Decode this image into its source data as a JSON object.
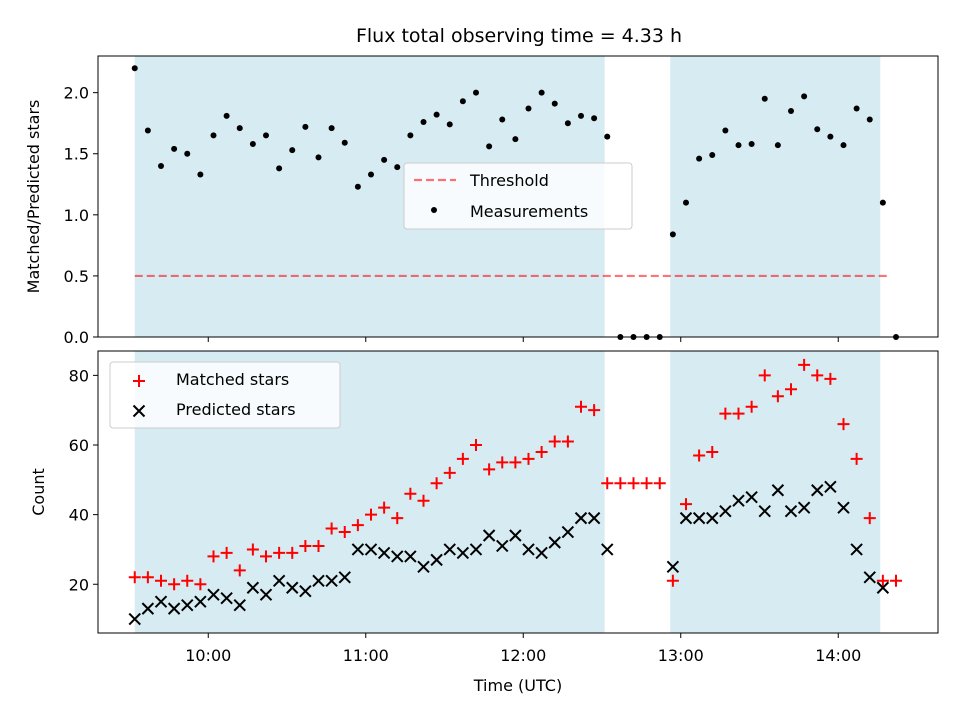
{
  "title": "Flux total observing time = 4.33 h",
  "colors": {
    "span": "#add8e6",
    "threshold": "#ff0000",
    "measurement": "#000000",
    "matched": "#ff0000",
    "predicted": "#000000"
  },
  "chart_data": [
    {
      "type": "scatter",
      "ylabel": "Matched/Predicted stars",
      "xlim": [
        "09:18",
        "14:38"
      ],
      "ylim": [
        0,
        2.3
      ],
      "yticks": [
        0.0,
        0.5,
        1.0,
        1.5,
        2.0
      ],
      "ytick_labels": [
        "0.0",
        "0.5",
        "1.0",
        "1.5",
        "2.0"
      ],
      "observing_spans": [
        [
          "09:32",
          "12:31"
        ],
        [
          "12:56",
          "14:16"
        ]
      ],
      "legend": {
        "position": "center",
        "entries": [
          {
            "label": "Threshold",
            "kind": "dashed-line"
          },
          {
            "label": "Measurements",
            "kind": "dot"
          }
        ]
      },
      "series": [
        {
          "name": "Threshold",
          "kind": "hline",
          "y": 0.5,
          "x_range": [
            "09:32",
            "14:20"
          ]
        },
        {
          "name": "Measurements",
          "kind": "dots",
          "points": [
            [
              "09:32",
              2.2
            ],
            [
              "09:37",
              1.69
            ],
            [
              "09:42",
              1.4
            ],
            [
              "09:47",
              1.54
            ],
            [
              "09:52",
              1.5
            ],
            [
              "09:57",
              1.33
            ],
            [
              "10:02",
              1.65
            ],
            [
              "10:07",
              1.81
            ],
            [
              "10:12",
              1.71
            ],
            [
              "10:17",
              1.58
            ],
            [
              "10:22",
              1.65
            ],
            [
              "10:27",
              1.38
            ],
            [
              "10:32",
              1.53
            ],
            [
              "10:37",
              1.72
            ],
            [
              "10:42",
              1.47
            ],
            [
              "10:47",
              1.71
            ],
            [
              "10:52",
              1.59
            ],
            [
              "10:57",
              1.23
            ],
            [
              "11:02",
              1.33
            ],
            [
              "11:07",
              1.45
            ],
            [
              "11:12",
              1.39
            ],
            [
              "11:17",
              1.65
            ],
            [
              "11:22",
              1.76
            ],
            [
              "11:27",
              1.82
            ],
            [
              "11:32",
              1.74
            ],
            [
              "11:37",
              1.93
            ],
            [
              "11:42",
              2.0
            ],
            [
              "11:47",
              1.56
            ],
            [
              "11:52",
              1.78
            ],
            [
              "11:57",
              1.62
            ],
            [
              "12:02",
              1.87
            ],
            [
              "12:07",
              2.0
            ],
            [
              "12:12",
              1.91
            ],
            [
              "12:17",
              1.75
            ],
            [
              "12:22",
              1.81
            ],
            [
              "12:27",
              1.79
            ],
            [
              "12:32",
              1.64
            ],
            [
              "12:37",
              0.0
            ],
            [
              "12:42",
              0.0
            ],
            [
              "12:47",
              0.0
            ],
            [
              "12:52",
              0.0
            ],
            [
              "12:57",
              0.84
            ],
            [
              "13:02",
              1.1
            ],
            [
              "13:07",
              1.46
            ],
            [
              "13:12",
              1.49
            ],
            [
              "13:17",
              1.69
            ],
            [
              "13:22",
              1.57
            ],
            [
              "13:27",
              1.58
            ],
            [
              "13:32",
              1.95
            ],
            [
              "13:37",
              1.57
            ],
            [
              "13:42",
              1.85
            ],
            [
              "13:47",
              1.97
            ],
            [
              "13:52",
              1.7
            ],
            [
              "13:57",
              1.64
            ],
            [
              "14:02",
              1.57
            ],
            [
              "14:07",
              1.87
            ],
            [
              "14:12",
              1.78
            ],
            [
              "14:17",
              1.1
            ],
            [
              "14:22",
              0.0
            ]
          ]
        }
      ]
    },
    {
      "type": "scatter",
      "xlabel": "Time (UTC)",
      "ylabel": "Count",
      "xlim": [
        "09:18",
        "14:38"
      ],
      "ylim": [
        6,
        87
      ],
      "xticks": [
        "10:00",
        "11:00",
        "12:00",
        "13:00",
        "14:00"
      ],
      "yticks": [
        20,
        40,
        60,
        80
      ],
      "ytick_labels": [
        "20",
        "40",
        "60",
        "80"
      ],
      "observing_spans": [
        [
          "09:32",
          "12:31"
        ],
        [
          "12:56",
          "14:16"
        ]
      ],
      "legend": {
        "position": "upper left",
        "entries": [
          {
            "label": "Matched stars",
            "kind": "plus"
          },
          {
            "label": "Predicted stars",
            "kind": "cross"
          }
        ]
      },
      "series": [
        {
          "name": "Matched stars",
          "kind": "plus",
          "points": [
            [
              "09:32",
              22
            ],
            [
              "09:37",
              22
            ],
            [
              "09:42",
              21
            ],
            [
              "09:47",
              20
            ],
            [
              "09:52",
              21
            ],
            [
              "09:57",
              20
            ],
            [
              "10:02",
              28
            ],
            [
              "10:07",
              29
            ],
            [
              "10:12",
              24
            ],
            [
              "10:17",
              30
            ],
            [
              "10:22",
              28
            ],
            [
              "10:27",
              29
            ],
            [
              "10:32",
              29
            ],
            [
              "10:37",
              31
            ],
            [
              "10:42",
              31
            ],
            [
              "10:47",
              36
            ],
            [
              "10:52",
              35
            ],
            [
              "10:57",
              37
            ],
            [
              "11:02",
              40
            ],
            [
              "11:07",
              42
            ],
            [
              "11:12",
              39
            ],
            [
              "11:17",
              46
            ],
            [
              "11:22",
              44
            ],
            [
              "11:27",
              49
            ],
            [
              "11:32",
              52
            ],
            [
              "11:37",
              56
            ],
            [
              "11:42",
              60
            ],
            [
              "11:47",
              53
            ],
            [
              "11:52",
              55
            ],
            [
              "11:57",
              55
            ],
            [
              "12:02",
              56
            ],
            [
              "12:07",
              58
            ],
            [
              "12:12",
              61
            ],
            [
              "12:17",
              61
            ],
            [
              "12:22",
              71
            ],
            [
              "12:27",
              70
            ],
            [
              "12:32",
              49
            ],
            [
              "12:37",
              49
            ],
            [
              "12:42",
              49
            ],
            [
              "12:47",
              49
            ],
            [
              "12:52",
              49
            ],
            [
              "12:57",
              21
            ],
            [
              "13:02",
              43
            ],
            [
              "13:07",
              57
            ],
            [
              "13:12",
              58
            ],
            [
              "13:17",
              69
            ],
            [
              "13:22",
              69
            ],
            [
              "13:27",
              71
            ],
            [
              "13:32",
              80
            ],
            [
              "13:37",
              74
            ],
            [
              "13:42",
              76
            ],
            [
              "13:47",
              83
            ],
            [
              "13:52",
              80
            ],
            [
              "13:57",
              79
            ],
            [
              "14:02",
              66
            ],
            [
              "14:07",
              56
            ],
            [
              "14:12",
              39
            ],
            [
              "14:17",
              21
            ],
            [
              "14:22",
              21
            ]
          ]
        },
        {
          "name": "Predicted stars",
          "kind": "cross",
          "points": [
            [
              "09:32",
              10
            ],
            [
              "09:37",
              13
            ],
            [
              "09:42",
              15
            ],
            [
              "09:47",
              13
            ],
            [
              "09:52",
              14
            ],
            [
              "09:57",
              15
            ],
            [
              "10:02",
              17
            ],
            [
              "10:07",
              16
            ],
            [
              "10:12",
              14
            ],
            [
              "10:17",
              19
            ],
            [
              "10:22",
              17
            ],
            [
              "10:27",
              21
            ],
            [
              "10:32",
              19
            ],
            [
              "10:37",
              18
            ],
            [
              "10:42",
              21
            ],
            [
              "10:47",
              21
            ],
            [
              "10:52",
              22
            ],
            [
              "10:57",
              30
            ],
            [
              "11:02",
              30
            ],
            [
              "11:07",
              29
            ],
            [
              "11:12",
              28
            ],
            [
              "11:17",
              28
            ],
            [
              "11:22",
              25
            ],
            [
              "11:27",
              27
            ],
            [
              "11:32",
              30
            ],
            [
              "11:37",
              29
            ],
            [
              "11:42",
              30
            ],
            [
              "11:47",
              34
            ],
            [
              "11:52",
              31
            ],
            [
              "11:57",
              34
            ],
            [
              "12:02",
              30
            ],
            [
              "12:07",
              29
            ],
            [
              "12:12",
              32
            ],
            [
              "12:17",
              35
            ],
            [
              "12:22",
              39
            ],
            [
              "12:27",
              39
            ],
            [
              "12:32",
              30
            ],
            [
              "12:57",
              25
            ],
            [
              "13:02",
              39
            ],
            [
              "13:07",
              39
            ],
            [
              "13:12",
              39
            ],
            [
              "13:17",
              41
            ],
            [
              "13:22",
              44
            ],
            [
              "13:27",
              45
            ],
            [
              "13:32",
              41
            ],
            [
              "13:37",
              47
            ],
            [
              "13:42",
              41
            ],
            [
              "13:47",
              42
            ],
            [
              "13:52",
              47
            ],
            [
              "13:57",
              48
            ],
            [
              "14:02",
              42
            ],
            [
              "14:07",
              30
            ],
            [
              "14:12",
              22
            ],
            [
              "14:17",
              19
            ]
          ]
        }
      ]
    }
  ]
}
